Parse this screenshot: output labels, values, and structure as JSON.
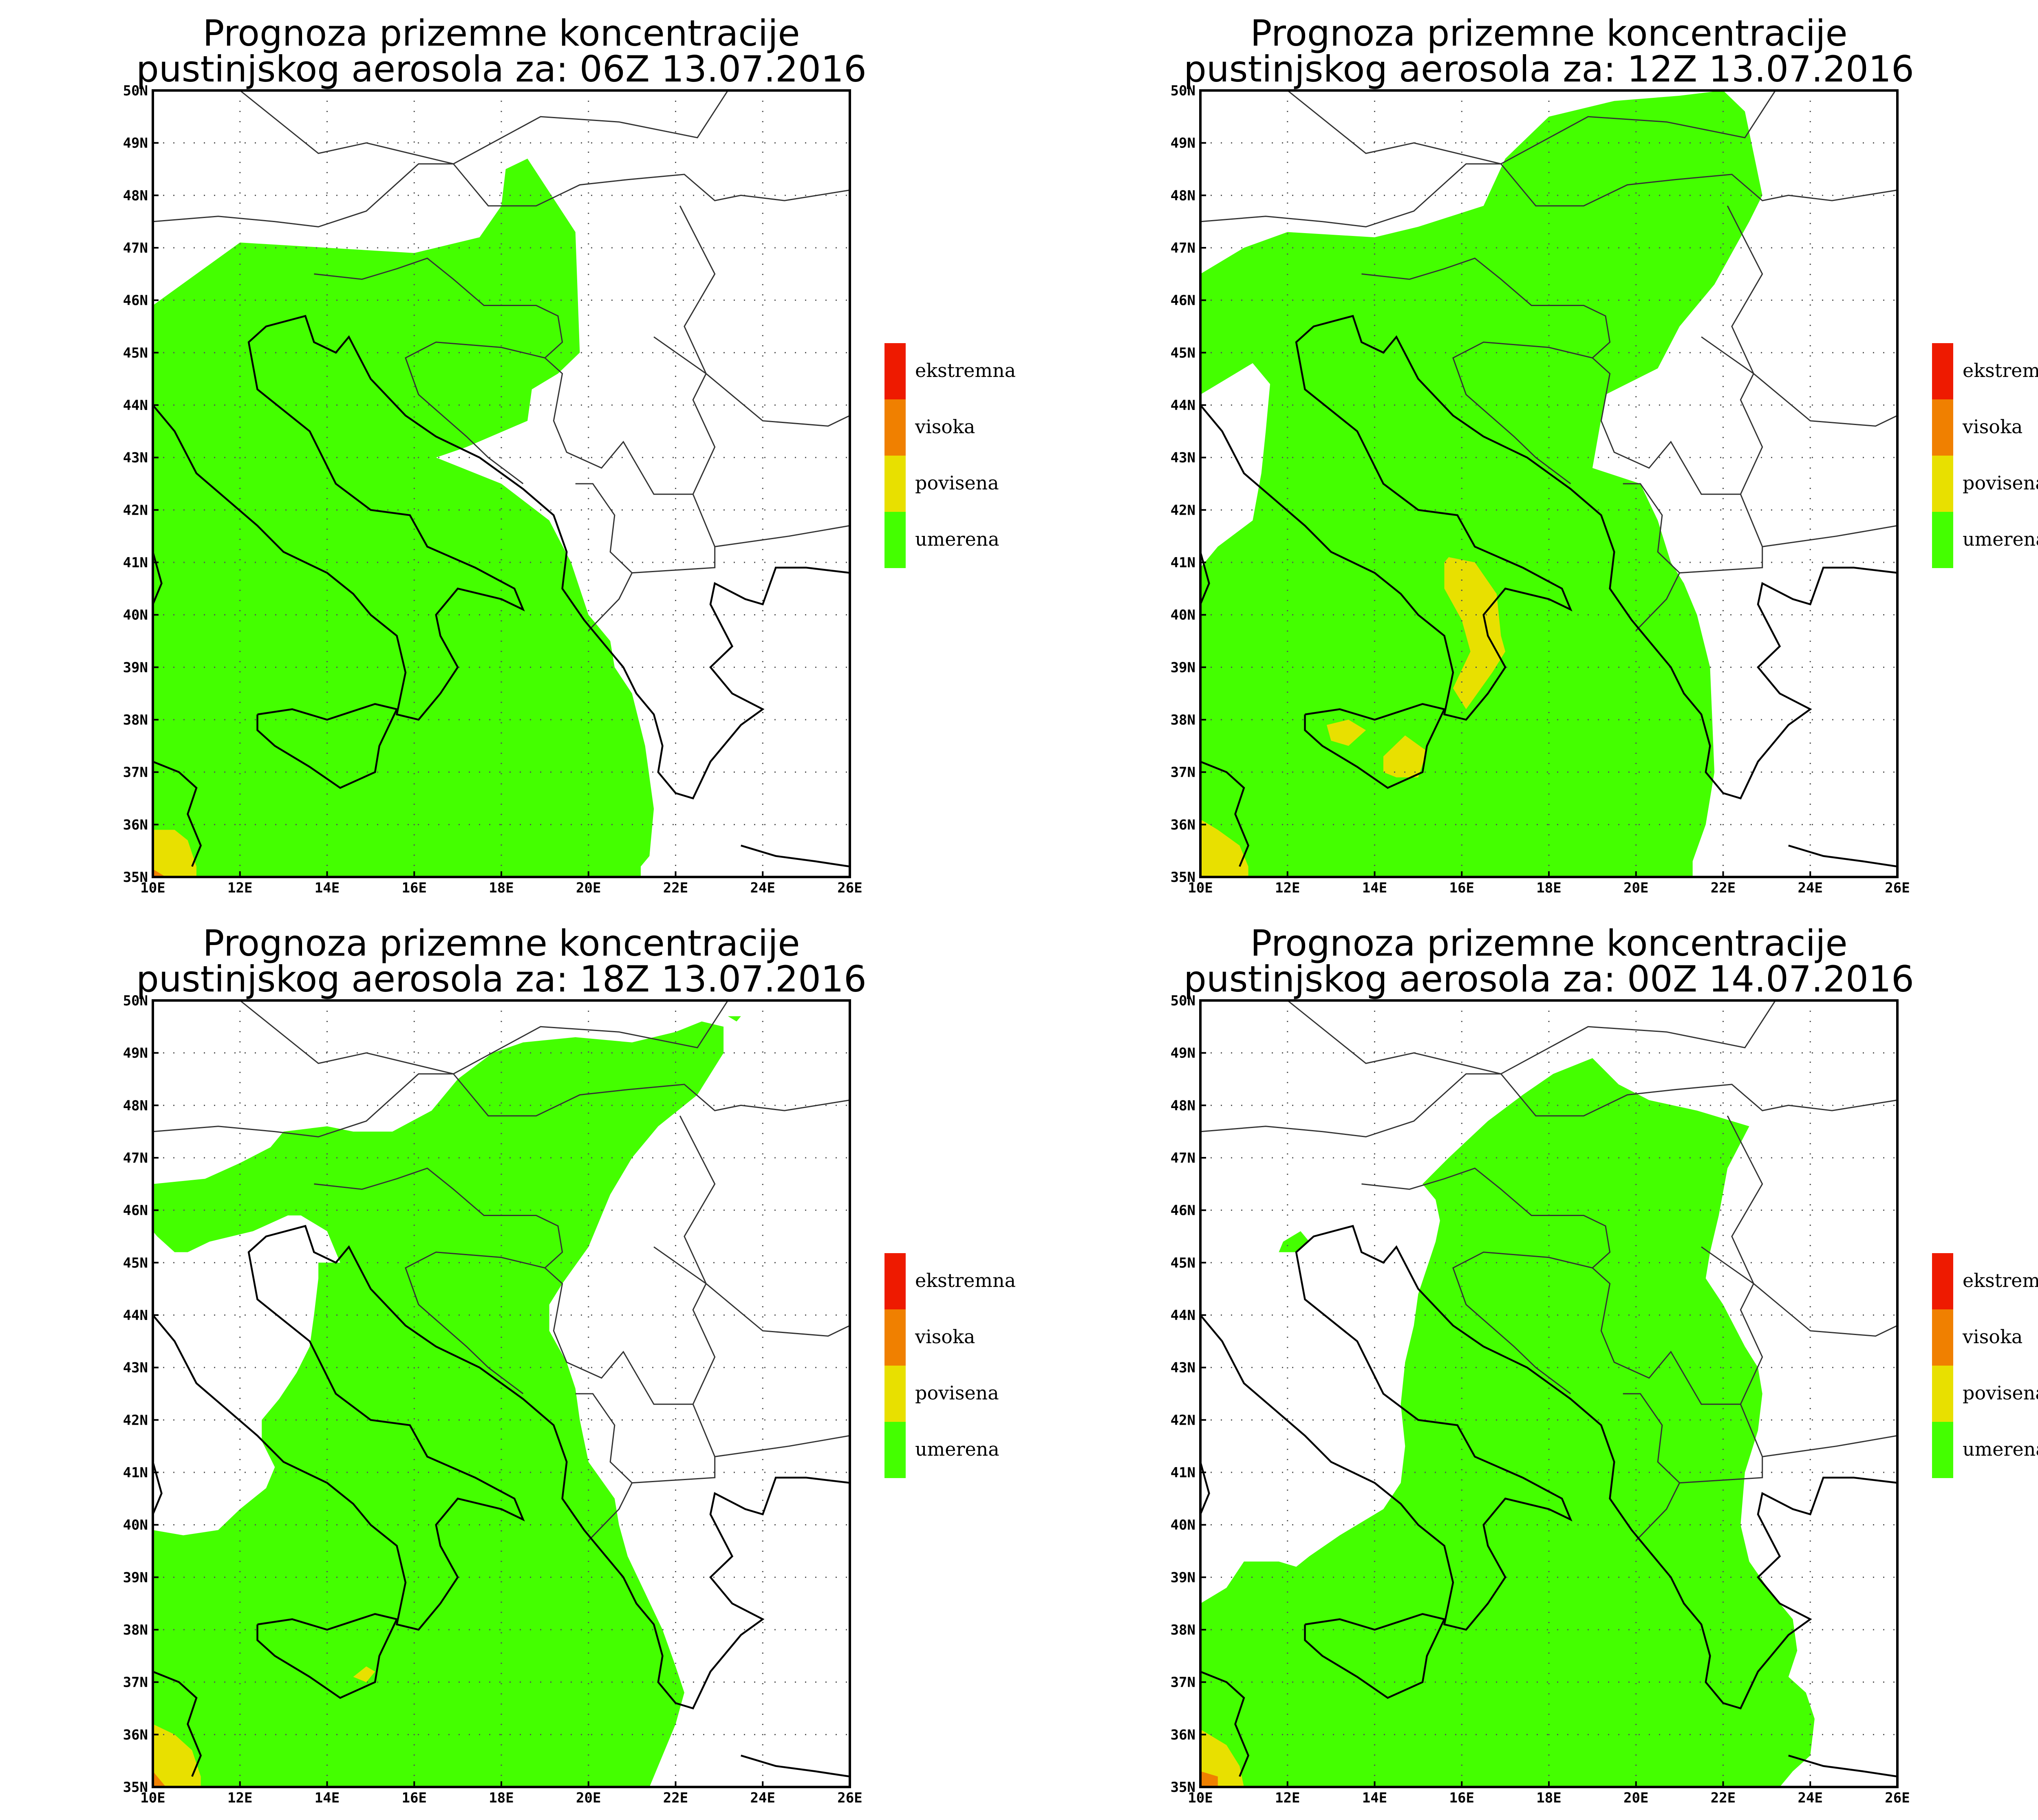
{
  "colors": {
    "ekstremna": "#ee1a00",
    "visoka": "#f08000",
    "povisena": "#e8e000",
    "umerena": "#44ff00",
    "background": "#ffffff"
  },
  "x_ticks": [
    "10E",
    "12E",
    "14E",
    "16E",
    "18E",
    "20E",
    "22E",
    "24E",
    "26E"
  ],
  "y_ticks": [
    "35N",
    "36N",
    "37N",
    "38N",
    "39N",
    "40N",
    "41N",
    "42N",
    "43N",
    "44N",
    "45N",
    "46N",
    "47N",
    "48N",
    "49N",
    "50N"
  ],
  "lon_range": [
    10,
    26
  ],
  "lat_range": [
    35,
    50
  ],
  "legend": [
    {
      "label": "ekstremna",
      "color_key": "ekstremna"
    },
    {
      "label": "visoka",
      "color_key": "visoka"
    },
    {
      "label": "povisena",
      "color_key": "povisena"
    },
    {
      "label": "umerena",
      "color_key": "umerena"
    }
  ],
  "panels": [
    {
      "title_line1": "Prognoza prizemne koncentracije",
      "title_line2": "pustinjskog aerosola za: 06Z 13.07.2016",
      "areas": [
        {
          "level": "umerena",
          "lonlat": [
            [
              10,
              35
            ],
            [
              10,
              45.9
            ],
            [
              11,
              46.5
            ],
            [
              12,
              47.1
            ],
            [
              14,
              47
            ],
            [
              16,
              46.9
            ],
            [
              17.5,
              47.2
            ],
            [
              18,
              47.8
            ],
            [
              18.1,
              48.5
            ],
            [
              18.6,
              48.7
            ],
            [
              19.7,
              47.3
            ],
            [
              19.8,
              45
            ],
            [
              19.3,
              44.6
            ],
            [
              18.7,
              44.3
            ],
            [
              18.6,
              43.7
            ],
            [
              17.2,
              43.2
            ],
            [
              16.5,
              43
            ],
            [
              18,
              42.5
            ],
            [
              19.1,
              41.8
            ],
            [
              19.6,
              41
            ],
            [
              20,
              40
            ],
            [
              20.5,
              39.5
            ],
            [
              20.6,
              39
            ],
            [
              21,
              38.5
            ],
            [
              21.3,
              37.5
            ],
            [
              21.5,
              36.3
            ],
            [
              21.4,
              35.4
            ],
            [
              21.2,
              35.2
            ],
            [
              21.2,
              35
            ]
          ]
        },
        {
          "level": "povisena",
          "lonlat": [
            [
              10,
              35
            ],
            [
              10,
              35.9
            ],
            [
              10.5,
              35.9
            ],
            [
              10.8,
              35.7
            ],
            [
              11,
              35.2
            ],
            [
              11,
              35
            ]
          ]
        },
        {
          "level": "visoka",
          "lonlat": [
            [
              10,
              35
            ],
            [
              10,
              35.15
            ],
            [
              10.3,
              35
            ]
          ]
        }
      ]
    },
    {
      "title_line1": "Prognoza prizemne koncentracije",
      "title_line2": "pustinjskog aerosola za: 12Z 13.07.2016",
      "areas": [
        {
          "level": "umerena",
          "lonlat": [
            [
              10,
              35
            ],
            [
              10,
              40.9
            ],
            [
              10.4,
              41.3
            ],
            [
              11.2,
              41.8
            ],
            [
              11.4,
              42.7
            ],
            [
              11.5,
              43.5
            ],
            [
              11.6,
              44.4
            ],
            [
              11.2,
              44.8
            ],
            [
              10.6,
              44.5
            ],
            [
              10,
              44.2
            ],
            [
              10,
              46.5
            ],
            [
              11,
              47
            ],
            [
              12,
              47.3
            ],
            [
              14,
              47.2
            ],
            [
              15,
              47.4
            ],
            [
              16.5,
              47.8
            ],
            [
              17,
              48.7
            ],
            [
              18,
              49.5
            ],
            [
              19.5,
              49.8
            ],
            [
              21,
              49.9
            ],
            [
              22,
              50
            ],
            [
              22.5,
              49.6
            ],
            [
              22.9,
              48
            ],
            [
              22.6,
              47.5
            ],
            [
              21.8,
              46.3
            ],
            [
              21,
              45.5
            ],
            [
              20.5,
              44.7
            ],
            [
              19.3,
              44.2
            ],
            [
              19,
              42.8
            ],
            [
              20.1,
              42.5
            ],
            [
              20.5,
              41.8
            ],
            [
              20.8,
              41
            ],
            [
              21.1,
              40.6
            ],
            [
              21.4,
              40
            ],
            [
              21.7,
              39
            ],
            [
              21.8,
              37
            ],
            [
              21.6,
              36
            ],
            [
              21.3,
              35.3
            ],
            [
              21.3,
              35
            ]
          ]
        },
        {
          "level": "povisena",
          "lonlat": [
            [
              15.7,
              41.1
            ],
            [
              16.3,
              41
            ],
            [
              16.8,
              40.4
            ],
            [
              16.9,
              39.6
            ],
            [
              17,
              39.3
            ],
            [
              16.7,
              38.9
            ],
            [
              16.1,
              38.2
            ],
            [
              15.8,
              38.6
            ],
            [
              16.2,
              39.3
            ],
            [
              16,
              39.9
            ],
            [
              15.6,
              40.5
            ],
            [
              15.6,
              41
            ]
          ]
        },
        {
          "level": "povisena",
          "lonlat": [
            [
              12.9,
              37.9
            ],
            [
              13.4,
              38
            ],
            [
              13.8,
              37.8
            ],
            [
              13.4,
              37.5
            ],
            [
              13,
              37.6
            ]
          ]
        },
        {
          "level": "povisena",
          "lonlat": [
            [
              14.2,
              37.3
            ],
            [
              14.7,
              37.7
            ],
            [
              15.2,
              37.4
            ],
            [
              15,
              36.9
            ],
            [
              14.5,
              36.9
            ],
            [
              14.2,
              37
            ]
          ]
        },
        {
          "level": "povisena",
          "lonlat": [
            [
              10,
              35
            ],
            [
              10,
              36.1
            ],
            [
              10.4,
              35.9
            ],
            [
              10.9,
              35.6
            ],
            [
              11.1,
              35.2
            ],
            [
              11.1,
              35
            ]
          ]
        }
      ]
    },
    {
      "title_line1": "Prognoza prizemne koncentracije",
      "title_line2": "pustinjskog aerosola za: 18Z 13.07.2016",
      "areas": [
        {
          "level": "umerena",
          "lonlat": [
            [
              10,
              35
            ],
            [
              10,
              39.9
            ],
            [
              10.7,
              39.8
            ],
            [
              11.5,
              39.9
            ],
            [
              12,
              40.3
            ],
            [
              12.6,
              40.7
            ],
            [
              12.8,
              41.1
            ],
            [
              12.5,
              41.6
            ],
            [
              12.5,
              42
            ],
            [
              12.9,
              42.4
            ],
            [
              13.3,
              42.9
            ],
            [
              13.6,
              43.4
            ],
            [
              13.7,
              44
            ],
            [
              13.8,
              44.7
            ],
            [
              13.8,
              45
            ],
            [
              14.3,
              45
            ],
            [
              14,
              45.6
            ],
            [
              13.4,
              45.9
            ],
            [
              13.1,
              45.9
            ],
            [
              12.3,
              45.6
            ],
            [
              11.3,
              45.4
            ],
            [
              10.8,
              45.2
            ],
            [
              10.5,
              45.2
            ],
            [
              10.1,
              45.5
            ],
            [
              10,
              45.6
            ],
            [
              10,
              46.5
            ],
            [
              11.2,
              46.6
            ],
            [
              12,
              46.9
            ],
            [
              12.7,
              47.2
            ],
            [
              13,
              47.5
            ],
            [
              14,
              47.6
            ],
            [
              14.6,
              47.5
            ],
            [
              15.5,
              47.5
            ],
            [
              16.4,
              47.9
            ],
            [
              17,
              48.5
            ],
            [
              17.8,
              49
            ],
            [
              18.5,
              49.2
            ],
            [
              19.7,
              49.3
            ],
            [
              21,
              49.2
            ],
            [
              22,
              49.4
            ],
            [
              22.6,
              49.6
            ],
            [
              23.1,
              49.5
            ],
            [
              23.1,
              49
            ],
            [
              22.5,
              48.2
            ],
            [
              21.6,
              47.6
            ],
            [
              21,
              47
            ],
            [
              20.5,
              46.3
            ],
            [
              20,
              45.3
            ],
            [
              19.4,
              44.6
            ],
            [
              19.1,
              44.2
            ],
            [
              19.1,
              43.7
            ],
            [
              19.5,
              43.1
            ],
            [
              19.7,
              42.6
            ],
            [
              19.8,
              42
            ],
            [
              20,
              41.2
            ],
            [
              20.6,
              40.5
            ],
            [
              20.7,
              40
            ],
            [
              20.9,
              39.4
            ],
            [
              21.3,
              38.7
            ],
            [
              21.7,
              38
            ],
            [
              22,
              37.3
            ],
            [
              22.2,
              36.8
            ],
            [
              22,
              36.2
            ],
            [
              21.8,
              35.8
            ],
            [
              21.4,
              35
            ],
            [
              10,
              35
            ]
          ]
        },
        {
          "level": "umerena",
          "lonlat": [
            [
              23.2,
              49.7
            ],
            [
              23.5,
              49.7
            ],
            [
              23.4,
              49.6
            ]
          ]
        },
        {
          "level": "povisena",
          "lonlat": [
            [
              14.6,
              37.1
            ],
            [
              14.9,
              37.3
            ],
            [
              15.1,
              37.2
            ],
            [
              14.9,
              37.0
            ]
          ]
        },
        {
          "level": "povisena",
          "lonlat": [
            [
              10,
              35
            ],
            [
              10,
              36.2
            ],
            [
              10.5,
              36
            ],
            [
              10.9,
              35.7
            ],
            [
              11.1,
              35.2
            ],
            [
              11.1,
              35
            ]
          ]
        },
        {
          "level": "visoka",
          "lonlat": [
            [
              10,
              35
            ],
            [
              10,
              35.3
            ],
            [
              10.3,
              35
            ]
          ]
        }
      ]
    },
    {
      "title_line1": "Prognoza prizemne koncentracije",
      "title_line2": "pustinjskog aerosola za: 00Z 14.07.2016",
      "areas": [
        {
          "level": "umerena",
          "lonlat": [
            [
              10,
              35
            ],
            [
              10,
              38.5
            ],
            [
              10.6,
              38.8
            ],
            [
              11,
              39.3
            ],
            [
              11.8,
              39.3
            ],
            [
              12.2,
              39.2
            ],
            [
              12.5,
              39.4
            ],
            [
              13.2,
              39.8
            ],
            [
              14.2,
              40.3
            ],
            [
              14.6,
              40.8
            ],
            [
              14.7,
              41.5
            ],
            [
              14.6,
              42.3
            ],
            [
              14.7,
              43.1
            ],
            [
              14.9,
              43.8
            ],
            [
              15,
              44.4
            ],
            [
              15.2,
              44.9
            ],
            [
              15.4,
              45.4
            ],
            [
              15.5,
              45.8
            ],
            [
              15.4,
              46.2
            ],
            [
              15.1,
              46.5
            ],
            [
              15.7,
              47
            ],
            [
              16.6,
              47.7
            ],
            [
              17.4,
              48.2
            ],
            [
              18.1,
              48.6
            ],
            [
              19,
              48.9
            ],
            [
              19.6,
              48.4
            ],
            [
              20.3,
              48.1
            ],
            [
              21.4,
              47.9
            ],
            [
              22.6,
              47.6
            ],
            [
              22.1,
              46.8
            ],
            [
              21.9,
              45.9
            ],
            [
              21.7,
              45.2
            ],
            [
              21.6,
              44.7
            ],
            [
              22,
              44.2
            ],
            [
              22.5,
              43.4
            ],
            [
              22.8,
              43
            ],
            [
              22.9,
              42.5
            ],
            [
              22.8,
              41.8
            ],
            [
              22.5,
              41
            ],
            [
              22.4,
              40
            ],
            [
              22.6,
              39.3
            ],
            [
              23.1,
              38.7
            ],
            [
              23.6,
              38.2
            ],
            [
              23.7,
              37.6
            ],
            [
              23.5,
              37.1
            ],
            [
              23.9,
              36.8
            ],
            [
              24.1,
              36.3
            ],
            [
              24,
              35.6
            ],
            [
              23.6,
              35.3
            ],
            [
              23.3,
              35
            ],
            [
              10,
              35
            ]
          ]
        },
        {
          "level": "umerena",
          "lonlat": [
            [
              11.9,
              45.4
            ],
            [
              12.3,
              45.6
            ],
            [
              12.5,
              45.4
            ],
            [
              12.2,
              45.2
            ],
            [
              11.8,
              45.2
            ]
          ]
        },
        {
          "level": "povisena",
          "lonlat": [
            [
              10,
              35
            ],
            [
              10,
              36.1
            ],
            [
              10.6,
              35.8
            ],
            [
              10.9,
              35.4
            ],
            [
              11,
              35
            ]
          ]
        },
        {
          "level": "visoka",
          "lonlat": [
            [
              10,
              35
            ],
            [
              10,
              35.3
            ],
            [
              10.4,
              35.2
            ],
            [
              10.4,
              35
            ]
          ]
        }
      ]
    }
  ]
}
